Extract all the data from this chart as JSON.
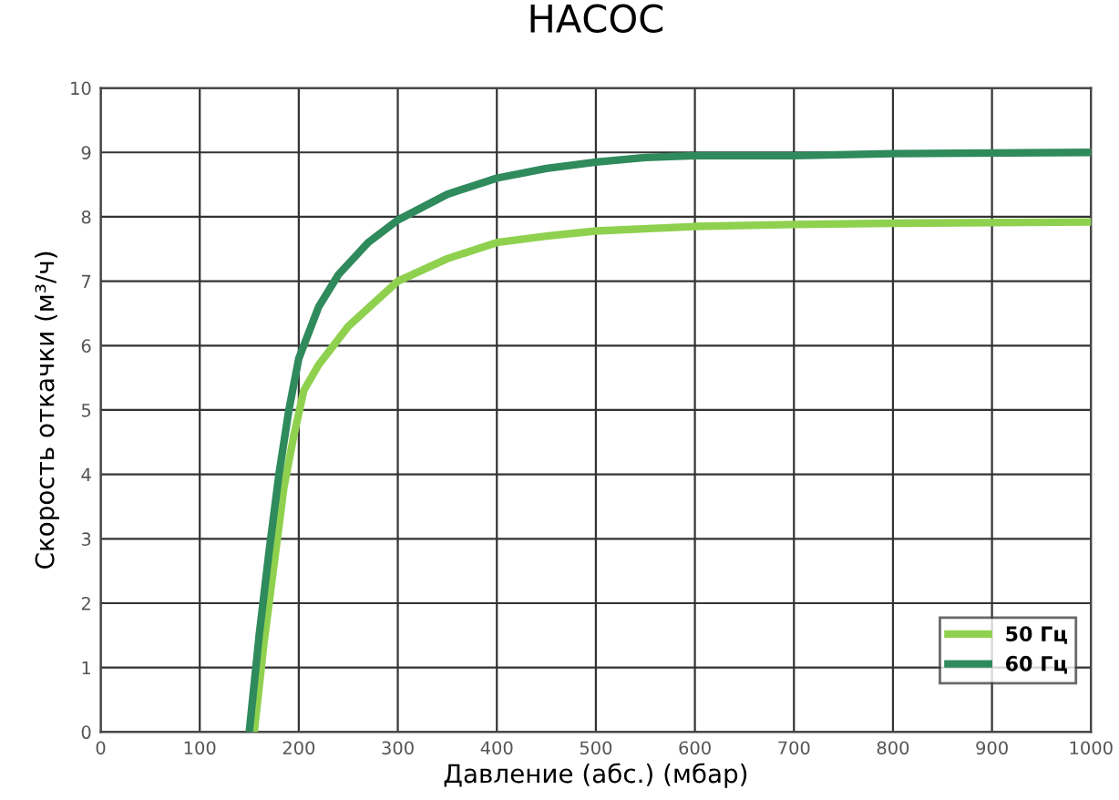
{
  "chart_data": {
    "type": "line",
    "title": "НАСОС",
    "xlabel": "Давление (абс.) (мбар)",
    "ylabel": "Скорость откачки (м³/ч)",
    "xlim": [
      0,
      1000
    ],
    "xticks": [
      0,
      100,
      200,
      300,
      400,
      500,
      600,
      700,
      800,
      900,
      1000
    ],
    "ylim": [
      0,
      10
    ],
    "yticks": [
      0,
      1,
      2,
      3,
      4,
      5,
      6,
      7,
      8,
      9,
      10
    ],
    "grid": true,
    "legend": "bottom right",
    "marker": "none",
    "line_style": "solid",
    "series": [
      {
        "name": "50 Гц",
        "color": "#8fd14f",
        "x": [
          155,
          165,
          175,
          185,
          195,
          205,
          220,
          250,
          300,
          350,
          400,
          450,
          500,
          600,
          700,
          800,
          1000
        ],
        "values": [
          0,
          1.4,
          2.6,
          3.8,
          4.6,
          5.3,
          5.7,
          6.3,
          7.0,
          7.35,
          7.6,
          7.7,
          7.78,
          7.85,
          7.88,
          7.9,
          7.92
        ]
      },
      {
        "name": "60 Гц",
        "color": "#2f8a5c",
        "x": [
          150,
          160,
          170,
          180,
          190,
          200,
          220,
          240,
          270,
          300,
          350,
          400,
          450,
          500,
          550,
          600,
          700,
          800,
          1000
        ],
        "values": [
          0,
          1.5,
          2.8,
          4.0,
          5.0,
          5.8,
          6.6,
          7.1,
          7.6,
          7.95,
          8.35,
          8.6,
          8.75,
          8.85,
          8.92,
          8.95,
          8.95,
          8.98,
          9.0
        ]
      }
    ]
  }
}
